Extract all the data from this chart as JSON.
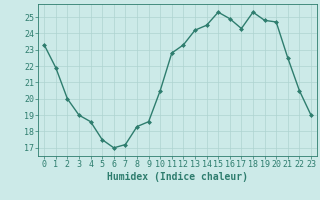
{
  "x": [
    0,
    1,
    2,
    3,
    4,
    5,
    6,
    7,
    8,
    9,
    10,
    11,
    12,
    13,
    14,
    15,
    16,
    17,
    18,
    19,
    20,
    21,
    22,
    23
  ],
  "y": [
    23.3,
    21.9,
    20.0,
    19.0,
    18.6,
    17.5,
    17.0,
    17.2,
    18.3,
    18.6,
    20.5,
    22.8,
    23.3,
    24.2,
    24.5,
    25.3,
    24.9,
    24.3,
    25.3,
    24.8,
    24.7,
    22.5,
    20.5,
    19.0
  ],
  "line_color": "#2e7d6e",
  "marker": "D",
  "marker_size": 2.0,
  "bg_color": "#cceae8",
  "grid_color": "#aed4d1",
  "xlabel": "Humidex (Indice chaleur)",
  "xlabel_fontsize": 7,
  "tick_fontsize": 6,
  "ylim": [
    16.5,
    25.8
  ],
  "yticks": [
    17,
    18,
    19,
    20,
    21,
    22,
    23,
    24,
    25
  ],
  "xticks": [
    0,
    1,
    2,
    3,
    4,
    5,
    6,
    7,
    8,
    9,
    10,
    11,
    12,
    13,
    14,
    15,
    16,
    17,
    18,
    19,
    20,
    21,
    22,
    23
  ],
  "spine_color": "#2e7d6e",
  "linewidth": 1.0
}
